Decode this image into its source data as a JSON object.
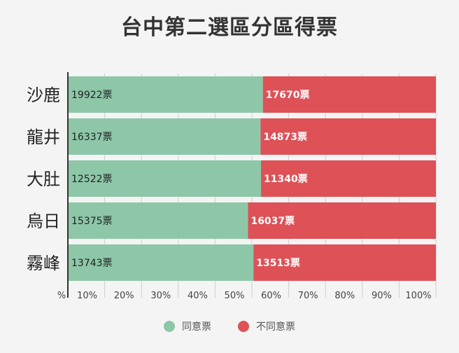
{
  "chart_data": {
    "type": "bar",
    "orientation": "horizontal",
    "stacked": "percent",
    "title": "台中第二選區分區得票",
    "categories": [
      "沙鹿",
      "龍井",
      "大肚",
      "烏日",
      "霧峰"
    ],
    "series": [
      {
        "name": "同意票",
        "values": [
          19922,
          16337,
          12522,
          15375,
          13743
        ],
        "labels": [
          "19922票",
          "16337票",
          "12522票",
          "15375票",
          "13743票"
        ],
        "color": "#8dc7a8"
      },
      {
        "name": "不同意票",
        "values": [
          17670,
          14873,
          11340,
          16037,
          13513
        ],
        "labels": [
          "17670票",
          "14873票",
          "11340票",
          "16037票",
          "13513票"
        ],
        "color": "#dd5157"
      }
    ],
    "x_ticks": [
      "%",
      "10%",
      "20%",
      "30%",
      "40%",
      "50%",
      "60%",
      "70%",
      "80%",
      "90%",
      "100%"
    ],
    "xlim": [
      0,
      100
    ],
    "grid": true,
    "legend_position": "bottom"
  }
}
